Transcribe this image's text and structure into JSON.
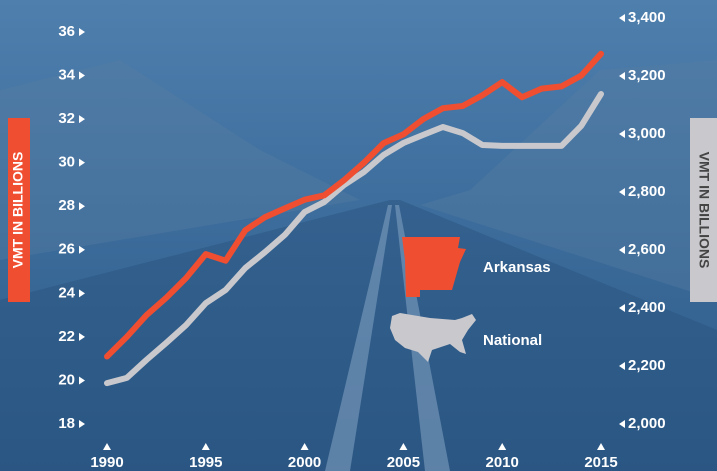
{
  "chart_data": {
    "type": "line",
    "x": [
      1990,
      1991,
      1992,
      1993,
      1994,
      1995,
      1996,
      1997,
      1998,
      1999,
      2000,
      2001,
      2002,
      2003,
      2004,
      2005,
      2006,
      2007,
      2008,
      2009,
      2010,
      2011,
      2012,
      2013,
      2014,
      2015
    ],
    "xlim": [
      1990,
      2015
    ],
    "xticks": [
      1990,
      1995,
      2000,
      2005,
      2010,
      2015
    ],
    "ylim": [
      18,
      36
    ],
    "yticks": [
      18,
      20,
      22,
      24,
      26,
      28,
      30,
      32,
      34,
      36
    ],
    "ylabel": "VMT IN BILLIONS",
    "y2lim": [
      2000,
      3400
    ],
    "y2ticks": [
      {
        "value": 2000,
        "label": "2,000"
      },
      {
        "value": 2200,
        "label": "2,200"
      },
      {
        "value": 2400,
        "label": "2,400"
      },
      {
        "value": 2600,
        "label": "2,600"
      },
      {
        "value": 2800,
        "label": "2,800"
      },
      {
        "value": 3000,
        "label": "3,000"
      },
      {
        "value": 3200,
        "label": "3,200"
      },
      {
        "value": 3400,
        "label": "3,400"
      }
    ],
    "y2label": "VMT IN BILLIONS",
    "series": [
      {
        "name": "Arkansas",
        "color": "#f04e30",
        "axis": "y",
        "values": [
          21.1,
          22,
          23,
          23.8,
          24.7,
          25.8,
          25.5,
          26.9,
          27.5,
          27.9,
          28.3,
          28.5,
          29.2,
          30,
          30.9,
          31.3,
          32,
          32.5,
          32.6,
          33.1,
          33.7,
          33,
          33.4,
          33.5,
          34,
          35
        ]
      },
      {
        "name": "National",
        "color": "#c9c9cd",
        "axis": "y2",
        "values": [
          2141,
          2159,
          2221,
          2280,
          2341,
          2417,
          2462,
          2538,
          2593,
          2652,
          2731,
          2766,
          2824,
          2869,
          2928,
          2969,
          2997,
          3024,
          3003,
          2962,
          2959,
          2959,
          2959,
          2959,
          3028,
          3138
        ]
      }
    ]
  }
}
